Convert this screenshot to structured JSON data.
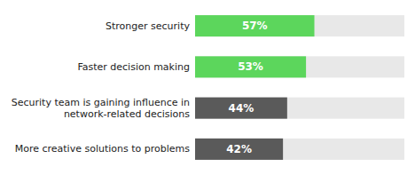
{
  "chart_data": {
    "type": "bar",
    "orientation": "horizontal",
    "categories": [
      "Stronger security",
      "Faster decision making",
      "Security team is gaining influence in\nnetwork-related decisions",
      "More creative solutions to problems"
    ],
    "values": [
      57,
      53,
      44,
      42
    ],
    "value_labels": [
      "57%",
      "53%",
      "44%",
      "42%"
    ],
    "colors": [
      "#5cd65c",
      "#5cd65c",
      "#5a5a5a",
      "#5a5a5a"
    ],
    "xlim": [
      0,
      100
    ],
    "data_labels": true,
    "tick_labels": "y",
    "grid": false
  }
}
